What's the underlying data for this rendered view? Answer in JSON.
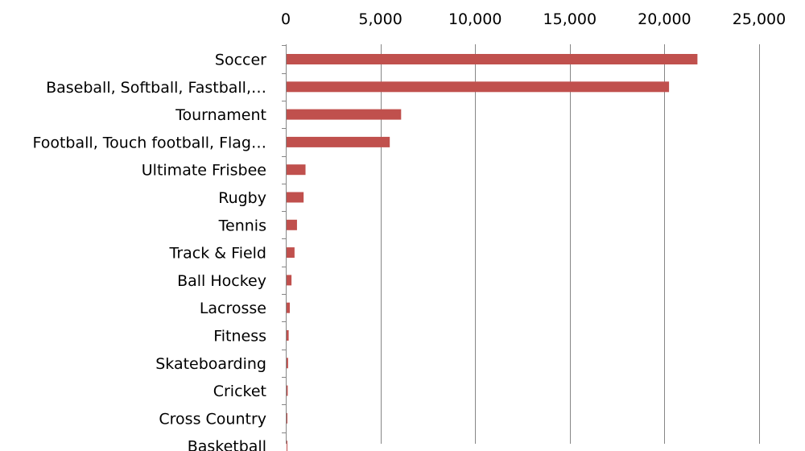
{
  "chart_data": {
    "type": "bar",
    "orientation": "horizontal",
    "title": "",
    "xlabel": "",
    "ylabel": "",
    "xlim": [
      0,
      25000
    ],
    "x_ticks": [
      "0",
      "5,000",
      "10,000",
      "15,000",
      "20,000",
      "25,000"
    ],
    "x_tick_values": [
      0,
      5000,
      10000,
      15000,
      20000,
      25000
    ],
    "x_axis_position": "top",
    "grid": true,
    "legend": "none",
    "bar_color": "#c0504d",
    "categories": [
      "Soccer",
      "Baseball, Softball, Fastball,…",
      "Tournament",
      "Football, Touch football, Flag…",
      "Ultimate Frisbee",
      "Rugby",
      "Tennis",
      "Track & Field",
      "Ball Hockey",
      "Lacrosse",
      "Fitness",
      "Skateboarding",
      "Cricket",
      "Cross Country",
      "Basketball"
    ],
    "values": [
      21700,
      20200,
      6050,
      5450,
      1000,
      900,
      550,
      420,
      260,
      170,
      110,
      80,
      60,
      40,
      10
    ]
  }
}
